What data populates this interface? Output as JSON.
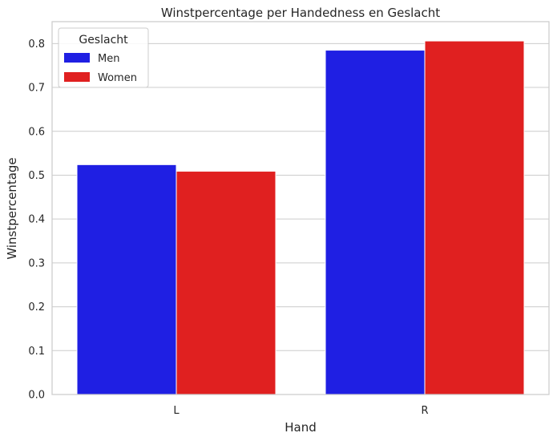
{
  "chart_data": {
    "type": "bar",
    "title": "Winstpercentage per Handedness en Geslacht",
    "xlabel": "Hand",
    "ylabel": "Winstpercentage",
    "categories": [
      "L",
      "R"
    ],
    "series": [
      {
        "name": "Men",
        "values": [
          0.524,
          0.785
        ],
        "color": "#1f1fe3"
      },
      {
        "name": "Women",
        "values": [
          0.509,
          0.806
        ],
        "color": "#e02020"
      }
    ],
    "ylim": [
      0,
      0.85
    ],
    "yticks": [
      0.0,
      0.1,
      0.2,
      0.3,
      0.4,
      0.5,
      0.6,
      0.7,
      0.8
    ],
    "ytick_labels": [
      "0.0",
      "0.1",
      "0.2",
      "0.3",
      "0.4",
      "0.5",
      "0.6",
      "0.7",
      "0.8"
    ],
    "grid": "horizontal",
    "legend": {
      "title": "Geslacht",
      "placement": "top-left"
    },
    "colors": {
      "grid": "#cccccc",
      "frame": "#cccccc",
      "text": "#262626",
      "background": "#ffffff"
    }
  }
}
